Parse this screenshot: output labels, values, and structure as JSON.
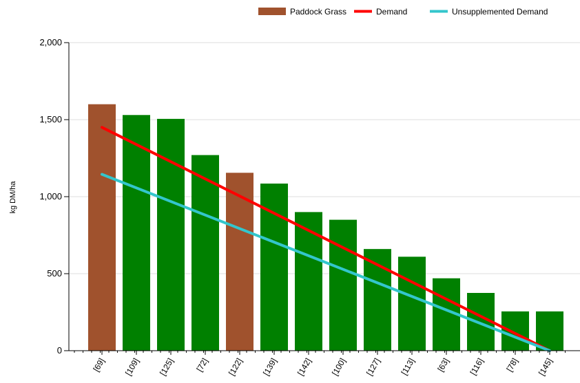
{
  "chart_data": {
    "type": "bar",
    "ylabel": "kg DM/ha",
    "ylim": [
      0,
      2000
    ],
    "yticks": [
      0,
      500,
      1000,
      1500,
      2000
    ],
    "ytick_labels": [
      "0",
      "500",
      "1,000",
      "1,500",
      "2,000"
    ],
    "grid": true,
    "legend_position": "top-right",
    "categories": [
      "[69]",
      "[109]",
      "[125]",
      "[72]",
      "[122]",
      "[139]",
      "[142]",
      "[100]",
      "[127]",
      "[113]",
      "[63]",
      "[116]",
      "[78]",
      "[145]"
    ],
    "values": [
      1600,
      1530,
      1505,
      1270,
      1155,
      1085,
      900,
      850,
      660,
      610,
      470,
      375,
      255,
      255
    ],
    "bar_colors": [
      "#a0522d",
      "#008000",
      "#008000",
      "#008000",
      "#a0522d",
      "#008000",
      "#008000",
      "#008000",
      "#008000",
      "#008000",
      "#008000",
      "#008000",
      "#008000",
      "#008000"
    ],
    "series": [
      {
        "name": "Paddock Grass",
        "kind": "bar",
        "color": "#a0522d"
      },
      {
        "name": "Demand",
        "kind": "line",
        "color": "#ff0000",
        "x": [
          "[69]",
          "[145]"
        ],
        "y": [
          1450,
          0
        ]
      },
      {
        "name": "Unsupplemented Demand",
        "kind": "line",
        "color": "#33c6cc",
        "x": [
          "[69]",
          "[145]"
        ],
        "y": [
          1145,
          0
        ]
      }
    ]
  }
}
